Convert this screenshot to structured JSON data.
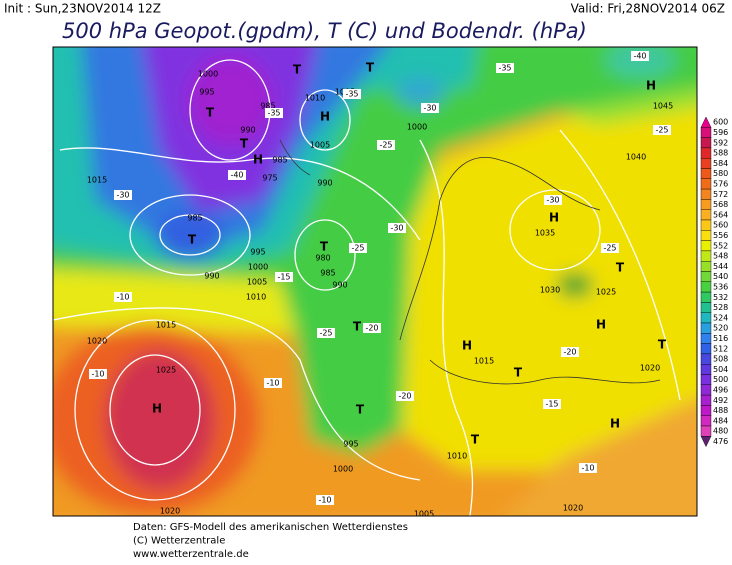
{
  "header": {
    "init": "Init : Sun,23NOV2014 12Z",
    "valid": "Valid: Fri,28NOV2014 06Z",
    "title": "500 hPa Geopot.(gpdm), T (C) und Bodendr. (hPa)"
  },
  "legend": {
    "levels": [
      600,
      596,
      592,
      588,
      584,
      580,
      576,
      572,
      568,
      564,
      560,
      556,
      552,
      548,
      544,
      540,
      536,
      532,
      528,
      524,
      520,
      516,
      512,
      508,
      504,
      500,
      496,
      492,
      488,
      484,
      480,
      476
    ],
    "colors": [
      "#e8008c",
      "#d8107a",
      "#c81850",
      "#e02828",
      "#e84020",
      "#ee5818",
      "#f06c18",
      "#f48420",
      "#f89c20",
      "#fab020",
      "#fcc818",
      "#f8e010",
      "#e8f000",
      "#c0e818",
      "#98e028",
      "#70d838",
      "#48d040",
      "#30c860",
      "#20c090",
      "#20b8c0",
      "#28a0e0",
      "#3080f0",
      "#3060e8",
      "#4848e0",
      "#6038e0",
      "#7830e0",
      "#9028d8",
      "#a820d0",
      "#c018c8",
      "#d028c0",
      "#e040b8",
      "#602070"
    ]
  },
  "map": {
    "pressure_labels": [
      1000,
      995,
      985,
      990,
      1010,
      1005,
      1000,
      1005,
      985,
      990,
      975,
      1015,
      985,
      995,
      1000,
      1005,
      1010,
      980,
      985,
      990,
      990,
      1015,
      1020,
      1025,
      1015,
      1035,
      1030,
      1025,
      1040,
      1045,
      995,
      1000,
      1005,
      1010,
      1020,
      1020,
      1020
    ],
    "temperature_labels": [
      -35,
      -35,
      -30,
      -35,
      -40,
      -30,
      -25,
      -30,
      -25,
      -20,
      -15,
      -25,
      -10,
      -10,
      -10,
      -20,
      -15,
      -10,
      -25,
      -25,
      -20,
      -10,
      -30,
      -40
    ],
    "centers": [
      "T",
      "T",
      "H",
      "T",
      "T",
      "H",
      "T",
      "T",
      "T",
      "T",
      "H",
      "H",
      "T",
      "H",
      "H",
      "T",
      "H",
      "H",
      "T",
      "T"
    ]
  },
  "footer": {
    "lines": [
      "Daten: GFS-Modell des amerikanischen Wetterdienstes",
      "(C) Wetterzentrale",
      "www.wetterzentrale.de"
    ]
  }
}
